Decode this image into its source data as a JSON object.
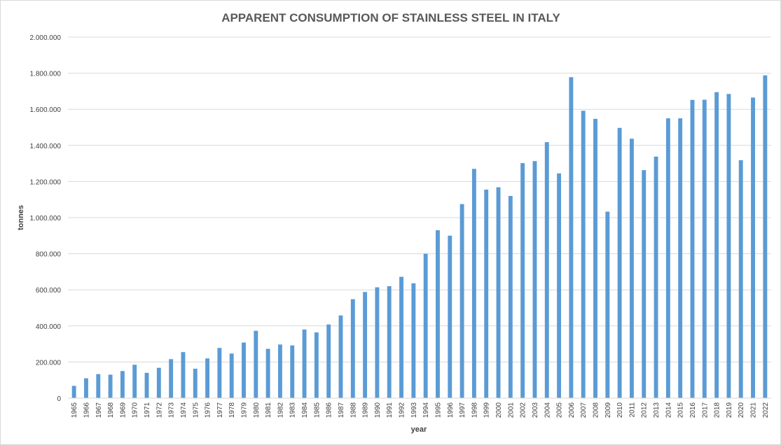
{
  "chart_data": {
    "type": "bar",
    "title": "APPARENT CONSUMPTION OF STAINLESS STEEL IN ITALY",
    "xlabel": "year",
    "ylabel": "tonnes",
    "ylim": [
      0,
      2000000
    ],
    "yticks": [
      0,
      200000,
      400000,
      600000,
      800000,
      1000000,
      1200000,
      1400000,
      1600000,
      1800000,
      2000000
    ],
    "ytick_labels": [
      "0",
      "200.000",
      "400.000",
      "600.000",
      "800.000",
      "1.000.000",
      "1.200.000",
      "1.400.000",
      "1.600.000",
      "1.800.000",
      "2.000.000"
    ],
    "grid": true,
    "legend": "none",
    "bar_color": "#5b9bd5",
    "categories": [
      "1965",
      "1966",
      "1967",
      "1968",
      "1969",
      "1970",
      "1971",
      "1972",
      "1973",
      "1974",
      "1975",
      "1976",
      "1977",
      "1978",
      "1979",
      "1980",
      "1981",
      "1982",
      "1983",
      "1984",
      "1985",
      "1986",
      "1987",
      "1988",
      "1989",
      "1990",
      "1991",
      "1992",
      "1993",
      "1994",
      "1995",
      "1996",
      "1997",
      "1998",
      "1999",
      "2000",
      "2001",
      "2002",
      "2003",
      "2004",
      "2005",
      "2006",
      "2007",
      "2008",
      "2009",
      "2010",
      "2011",
      "2012",
      "2013",
      "2014",
      "2015",
      "2016",
      "2017",
      "2018",
      "2019",
      "2020",
      "2021",
      "2022"
    ],
    "values": [
      68000,
      110000,
      133000,
      130000,
      150000,
      185000,
      140000,
      168000,
      216000,
      255000,
      163000,
      220000,
      278000,
      247000,
      308000,
      373000,
      273000,
      297000,
      292000,
      380000,
      364000,
      408000,
      458000,
      548000,
      588000,
      614000,
      620000,
      672000,
      636000,
      800000,
      930000,
      900000,
      1075000,
      1270000,
      1155000,
      1168000,
      1120000,
      1302000,
      1313000,
      1418000,
      1245000,
      1778000,
      1592000,
      1547000,
      1033000,
      1497000,
      1437000,
      1263000,
      1338000,
      1550000,
      1550000,
      1652000,
      1653000,
      1695000,
      1685000,
      1318000,
      1665000,
      1788000
    ]
  }
}
